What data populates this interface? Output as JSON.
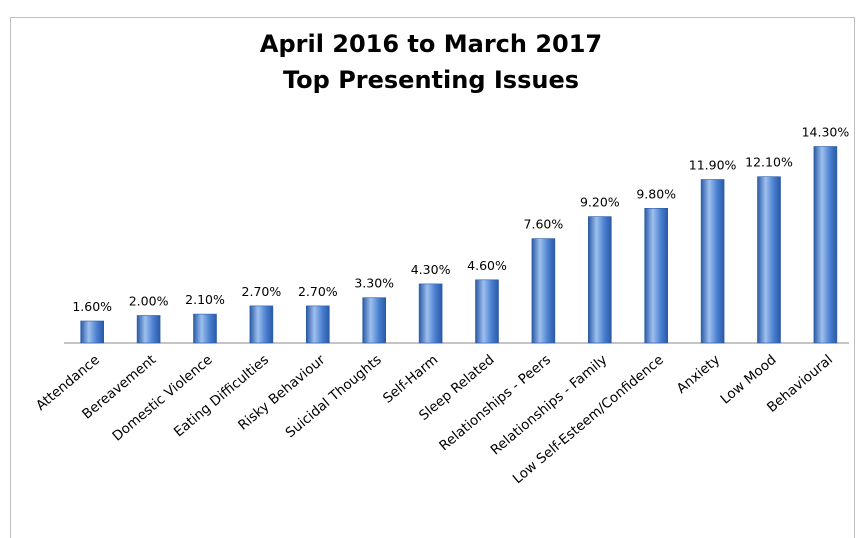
{
  "chart_data": {
    "type": "bar",
    "title": "April 2016 to March 2017",
    "subtitle": "Top Presenting Issues",
    "categories": [
      "Attendance",
      "Bereavement",
      "Domestic Violence",
      "Eating Difficulties",
      "Risky Behaviour",
      "Suicidal Thoughts",
      "Self-Harm",
      "Sleep Related",
      "Relationships - Peers",
      "Relationships - Family",
      "Low Self-Esteem/Confidence",
      "Anxiety",
      "Low Mood",
      "Behavioural"
    ],
    "values": [
      1.6,
      2.0,
      2.1,
      2.7,
      2.7,
      3.3,
      4.3,
      4.6,
      7.6,
      9.2,
      9.8,
      11.9,
      12.1,
      14.3
    ],
    "data_labels": [
      "1.60%",
      "2.00%",
      "2.10%",
      "2.70%",
      "2.70%",
      "3.30%",
      "4.30%",
      "4.60%",
      "7.60%",
      "9.20%",
      "9.80%",
      "11.90%",
      "12.10%",
      "14.30%"
    ],
    "ylim": [
      0,
      15.5
    ],
    "grid": false,
    "legend": "none",
    "colors": {
      "bar": "#4a7fd0",
      "bar_dark": "#2a5aa6",
      "bar_light": "#9ec0ee"
    }
  }
}
